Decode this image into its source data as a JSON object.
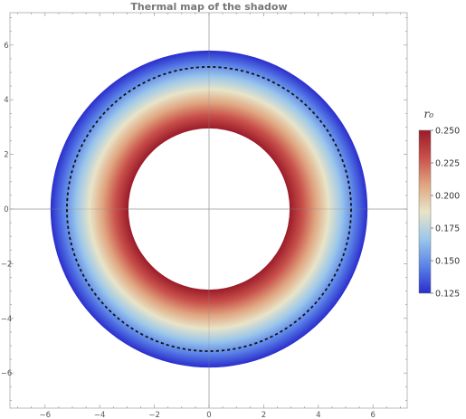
{
  "chart_data": {
    "type": "heatmap",
    "title": "Thermal map of the shadow",
    "xlabel": "",
    "ylabel": "",
    "xlim": [
      -7.2,
      7.2
    ],
    "ylim": [
      -7.2,
      7.2
    ],
    "x_ticks": [
      -6,
      -4,
      -2,
      0,
      2,
      4,
      6
    ],
    "y_ticks": [
      -6,
      -4,
      -2,
      0,
      2,
      4,
      6
    ],
    "x_tick_labels": [
      "−6",
      "−4",
      "−2",
      "0",
      "2",
      "4",
      "6"
    ],
    "y_tick_labels": [
      "−6",
      "−4",
      "−2",
      "0",
      "2",
      "4",
      "6"
    ],
    "grid": "axes lines through origin",
    "annulus": {
      "inner_radius": 2.95,
      "outer_radius": 5.8,
      "value_at_inner": 0.25,
      "value_at_outer": 0.125
    },
    "dashed_circle_radius": 5.2,
    "colorbar": {
      "title": "r₀",
      "min": 0.125,
      "max": 0.25,
      "ticks": [
        0.125,
        0.15,
        0.175,
        0.2,
        0.225,
        0.25
      ],
      "tick_labels": [
        "0.125",
        "0.150",
        "0.175",
        "0.200",
        "0.225",
        "0.250"
      ],
      "colors": [
        "#2a2dcc",
        "#5a82e8",
        "#9cc7ea",
        "#e8e4c8",
        "#e0a580",
        "#c8504a",
        "#9b1b2a"
      ]
    }
  }
}
